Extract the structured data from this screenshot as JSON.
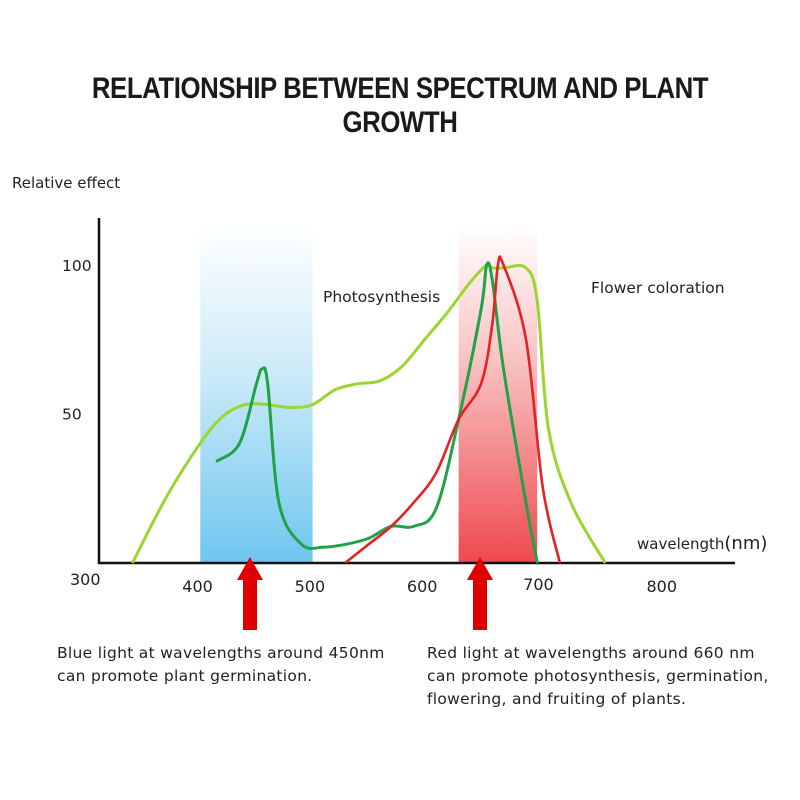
{
  "title": "RELATIONSHIP BETWEEN SPECTRUM AND PLANT GROWTH",
  "y_axis_label": "Relative effect",
  "x_axis_label": "wavelength",
  "x_axis_unit": "(nm)",
  "notes": {
    "blue": "Blue light at wavelengths around 450nm can promote plant germination.",
    "red": "Red light at wavelengths around 660 nm can promote photosynthesis, germination, flowering, and fruiting of plants."
  },
  "colors": {
    "photosynthesis": "#9ad62f",
    "dark_green": "#21a248",
    "red": "#e52222",
    "arrow": "#e00000",
    "blue_band": "#9fd8f3",
    "red_band": "#f36f73"
  },
  "chart_data": {
    "type": "line",
    "title": "RELATIONSHIP BETWEEN SPECTRUM AND PLANT GROWTH",
    "xlabel": "wavelength(nm)",
    "ylabel": "Relative effect",
    "xlim": [
      300,
      850
    ],
    "ylim": [
      0,
      115
    ],
    "x_ticks": [
      300,
      400,
      500,
      600,
      700,
      800
    ],
    "y_ticks": [
      50,
      100
    ],
    "grid": false,
    "bands": [
      {
        "color": "blue",
        "x": [
          400,
          500
        ]
      },
      {
        "color": "red",
        "x": [
          630,
          700
        ]
      }
    ],
    "arrows_at": [
      450,
      660
    ],
    "annotations": [
      "Photosynthesis",
      "Flower coloration"
    ],
    "series": [
      {
        "name": "Photosynthesis",
        "color": "light-green",
        "x": [
          340,
          370,
          400,
          420,
          440,
          460,
          480,
          500,
          520,
          540,
          560,
          580,
          600,
          620,
          640,
          655,
          660,
          670,
          690,
          700,
          710,
          730,
          760
        ],
        "y": [
          0,
          22,
          40,
          49,
          53,
          53,
          52,
          53,
          58,
          60,
          61,
          66,
          75,
          84,
          94,
          100,
          99,
          99,
          99,
          88,
          45,
          20,
          0
        ]
      },
      {
        "x": [
          415,
          435,
          450,
          455,
          460,
          470,
          490,
          510,
          530,
          550,
          570,
          590,
          610,
          630,
          650,
          655,
          660,
          670,
          690,
          700
        ],
        "y": [
          34,
          40,
          60,
          65,
          60,
          20,
          6,
          5,
          6,
          8,
          12,
          12,
          18,
          48,
          85,
          100,
          95,
          65,
          20,
          0
        ]
      },
      {
        "x": [
          530,
          550,
          570,
          590,
          610,
          630,
          650,
          660,
          665,
          670,
          690,
          705,
          720
        ],
        "y": [
          0,
          6,
          12,
          20,
          30,
          48,
          60,
          80,
          100,
          100,
          75,
          25,
          0
        ]
      }
    ]
  }
}
